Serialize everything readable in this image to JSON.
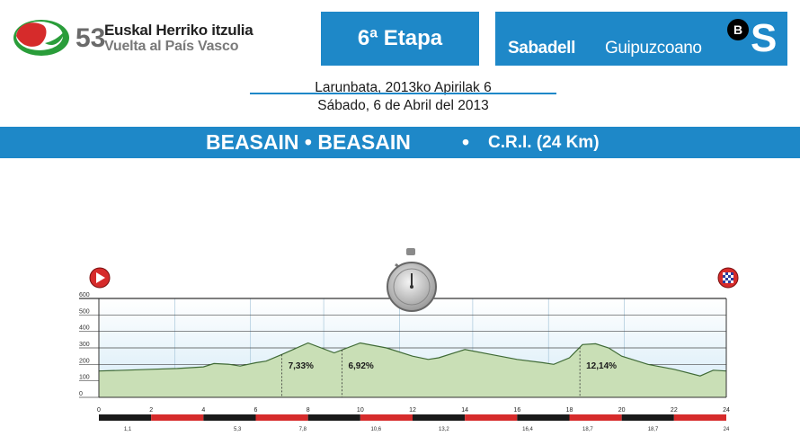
{
  "header": {
    "edition": "53",
    "race_name": "Euskal Herriko itzulia",
    "race_subtitle": "Vuelta al País Vasco",
    "stage": "6ª Etapa",
    "sponsor_bold": "Sabadell",
    "sponsor_regular": "Guipuzcoano",
    "sponsor_mark_letter": "B",
    "sponsor_mark_big": "S",
    "date_basque": "Larunbata, 2013ko Apirilak 6",
    "date_spanish": "Sábado, 6 de Abril del 2013"
  },
  "title": {
    "route": "BEASAIN • BEASAIN",
    "separator": "•",
    "type": "C.R.I. (24 Km)"
  },
  "colors": {
    "brand_blue": "#1e88c8",
    "profile_fill": "#c9dfb6",
    "profile_line": "#3f6a35",
    "marker_red": "#d62b2b"
  },
  "icons": {
    "start": "start-flag-icon",
    "finish": "finish-flag-icon",
    "timing": "stopwatch-icon"
  },
  "chart_data": {
    "type": "area",
    "x_unit": "km",
    "y_unit": "m",
    "ylim": [
      0,
      600
    ],
    "xlim": [
      0,
      24
    ],
    "y_ticks": [
      0,
      100,
      200,
      300,
      400,
      500,
      600
    ],
    "x_ticks": [
      0,
      2,
      4,
      6,
      8,
      10,
      12,
      14,
      16,
      18,
      20,
      22,
      24
    ],
    "x_ticks_minor": [
      "1,1",
      "5,3",
      "7,8",
      "10,6",
      "13,2",
      "16,4",
      "18,7",
      "18,7",
      "24"
    ],
    "x": [
      0,
      1,
      2,
      3,
      4,
      4.4,
      5,
      5.4,
      6,
      6.4,
      7,
      8,
      9,
      10,
      11,
      12,
      12.6,
      13,
      14,
      15,
      16,
      17,
      17.4,
      18,
      18.5,
      19,
      19.5,
      20,
      21,
      22,
      23,
      23.5,
      24
    ],
    "y": [
      160,
      165,
      170,
      175,
      185,
      205,
      200,
      190,
      210,
      220,
      260,
      330,
      270,
      330,
      300,
      250,
      230,
      240,
      290,
      260,
      230,
      210,
      200,
      240,
      320,
      325,
      300,
      250,
      200,
      170,
      130,
      165,
      160
    ],
    "gradients": [
      {
        "label": "7,33%",
        "at_km": 7
      },
      {
        "label": "6,92%",
        "at_km": 9.3
      },
      {
        "label": "12,14%",
        "at_km": 18.4
      }
    ],
    "title": "",
    "xlabel": "",
    "ylabel": "",
    "grid": true
  }
}
